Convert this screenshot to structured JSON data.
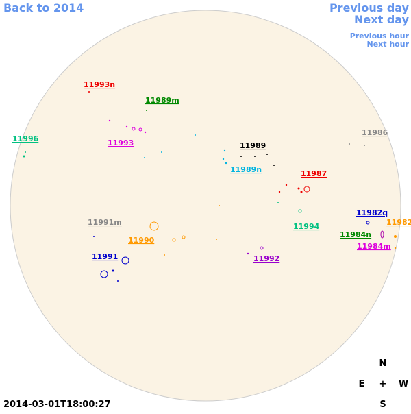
{
  "nav": {
    "back": "Back to 2014",
    "previous_day": "Previous day",
    "next_day": "Next day",
    "previous_hour": "Previous hour",
    "next_hour": "Next hour"
  },
  "regions": [
    "11993n",
    "11989m",
    "11996",
    "11993",
    "11989",
    "11986",
    "11989n",
    "11987",
    "11994",
    "11991m",
    "11990",
    "11982q",
    "11982",
    "11984n",
    "11984m",
    "11991",
    "11992"
  ],
  "timestamp": "2014-03-01T18:00:27",
  "compass": {
    "north": "N",
    "east": "E",
    "center": "+",
    "west": "W",
    "south": "S"
  }
}
